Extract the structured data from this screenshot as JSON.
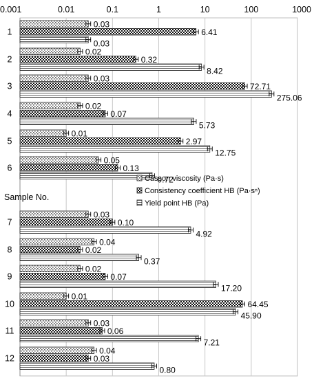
{
  "chart_data": {
    "type": "bar",
    "orientation": "horizontal",
    "x_scale": "log",
    "xlim": [
      0.001,
      1000
    ],
    "x_tick_labels": [
      "0.001",
      "0.01",
      "0.1",
      "1",
      "10",
      "100",
      "1000"
    ],
    "grid": true,
    "error_bars": true,
    "categories": [
      "1",
      "2",
      "3",
      "4",
      "5",
      "6",
      "7",
      "8",
      "9",
      "10",
      "11",
      "12"
    ],
    "category_axis_label": "Sample No.",
    "legend_position": "right, between samples 6 and 7",
    "series": [
      {
        "name": "Casson viscosity (Pa·s)",
        "pattern": "dots",
        "values": [
          0.03,
          0.02,
          0.03,
          0.02,
          0.01,
          0.05,
          0.03,
          0.04,
          0.02,
          0.01,
          0.03,
          0.04
        ],
        "labels": [
          "0.03",
          "0.02",
          "0.03",
          "0.02",
          "0.01",
          "0.05",
          "0.03",
          "0.04",
          "0.02",
          "0.01",
          "0.03",
          "0.04"
        ]
      },
      {
        "name": "Consistency coefficient HB (Pa·sⁿ)",
        "pattern": "checker",
        "values": [
          6.41,
          0.32,
          72.71,
          0.07,
          2.97,
          0.13,
          0.1,
          0.02,
          0.07,
          64.45,
          0.06,
          0.03
        ],
        "labels": [
          "6.41",
          "0.32",
          "72.71",
          "0.07",
          "2.97",
          "0.13",
          "0.10",
          "0.02",
          "0.07",
          "64.45",
          "0.06",
          "0.03"
        ]
      },
      {
        "name": "Yield point HB (Pa)",
        "pattern": "lines",
        "values": [
          0.03,
          8.42,
          275.06,
          5.73,
          12.75,
          0.72,
          4.92,
          0.37,
          17.2,
          45.9,
          7.21,
          0.8
        ],
        "labels": [
          "0.03",
          "8.42",
          "275.06",
          "5.73",
          "12.75",
          "0.72",
          "4.92",
          "0.37",
          "17.20",
          "45.90",
          "7.21",
          "0.80"
        ]
      }
    ]
  }
}
